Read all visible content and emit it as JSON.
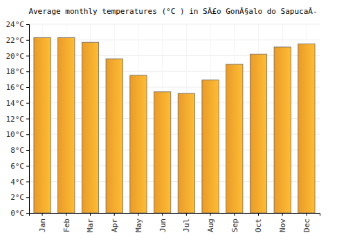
{
  "chart_data": {
    "type": "bar",
    "title": "Average monthly temperatures (°C ) in SÃ£o GonÃ§alo do SapucaÃ-",
    "categories": [
      "Jan",
      "Feb",
      "Mar",
      "Apr",
      "May",
      "Jun",
      "Jul",
      "Aug",
      "Sep",
      "Oct",
      "Nov",
      "Dec"
    ],
    "values": [
      22.3,
      22.3,
      21.7,
      19.6,
      17.5,
      15.4,
      15.2,
      16.9,
      18.9,
      20.2,
      21.1,
      21.5
    ],
    "color": "#ffaa2e",
    "ylim": [
      0,
      24
    ],
    "yticks": [
      {
        "value": 0,
        "label": "0°C"
      },
      {
        "value": 2,
        "label": "2°C"
      },
      {
        "value": 4,
        "label": "4°C"
      },
      {
        "value": 6,
        "label": "6°C"
      },
      {
        "value": 8,
        "label": "8°C"
      },
      {
        "value": 10,
        "label": "10°C"
      },
      {
        "value": 12,
        "label": "12°C"
      },
      {
        "value": 14,
        "label": "14°C"
      },
      {
        "value": 16,
        "label": "16°C"
      },
      {
        "value": 18,
        "label": "18°C"
      },
      {
        "value": 20,
        "label": "20°C"
      },
      {
        "value": 22,
        "label": "22°C"
      },
      {
        "value": 24,
        "label": "24°C"
      }
    ],
    "grid": true
  }
}
